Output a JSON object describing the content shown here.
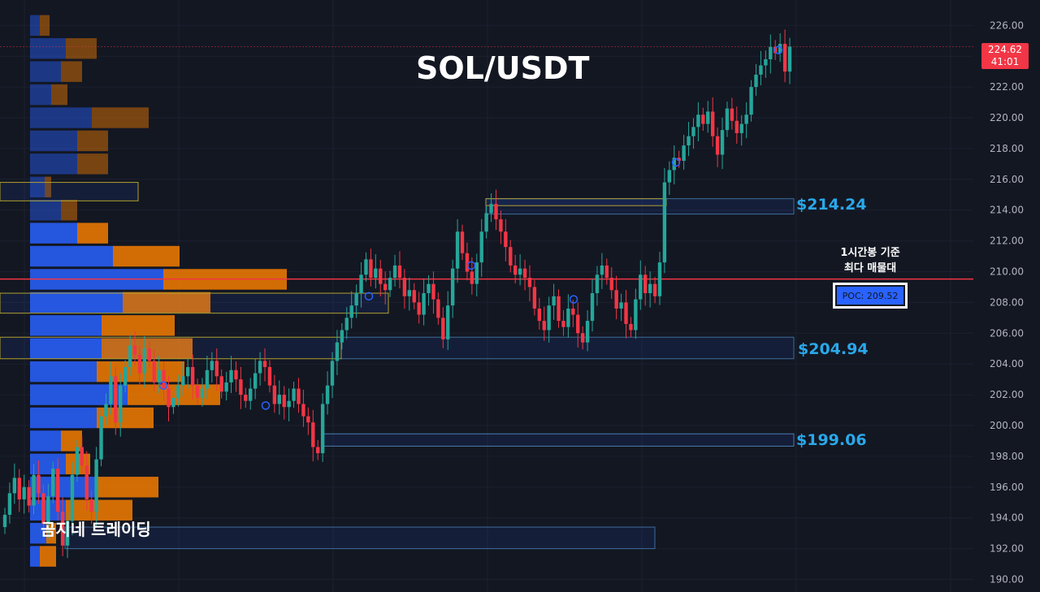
{
  "title": "SOL/USDT",
  "watermark": "곰지네 트레이딩",
  "annotation": {
    "line1": "1시간봉 기준",
    "line2": "최다 매물대"
  },
  "poc_label": "POC: 209.52",
  "last_price": {
    "price": "224.62",
    "countdown": "41:01"
  },
  "levels": [
    {
      "label": "$214.24",
      "value": 214.24
    },
    {
      "label": "$204.94",
      "value": 204.94
    },
    {
      "label": "$199.06",
      "value": 199.06
    }
  ],
  "colors": {
    "background": "#131722",
    "up": "#26a69a",
    "down": "#f23645",
    "poc_line": "#f23645",
    "vp_up": "#2962ff",
    "vp_down": "#f57c00",
    "accent": "#29a8ea"
  },
  "chart_data": {
    "type": "candlestick",
    "timeframe": "1h",
    "ylim": [
      189.5,
      227
    ],
    "y_ticks": [
      "190.00",
      "192.00",
      "194.00",
      "196.00",
      "198.00",
      "200.00",
      "202.00",
      "204.00",
      "206.00",
      "208.00",
      "210.00",
      "212.00",
      "214.00",
      "216.00",
      "218.00",
      "220.00",
      "222.00",
      "224.00",
      "226.00"
    ],
    "poc": 209.52,
    "last_price": 224.62,
    "support_resistance": [
      214.24,
      204.94,
      199.06
    ],
    "closes": [
      194.2,
      195.6,
      196.6,
      195.2,
      196.0,
      194.8,
      196.8,
      195.6,
      193.6,
      195.4,
      197.2,
      194.4,
      192.2,
      193.8,
      196.8,
      198.6,
      197.4,
      195.2,
      194.4,
      197.8,
      200.6,
      201.4,
      203.2,
      200.2,
      202.6,
      203.8,
      205.2,
      204.6,
      203.4,
      205.0,
      204.2,
      202.8,
      203.6,
      202.4,
      201.2,
      201.8,
      202.6,
      203.2,
      203.8,
      202.6,
      201.8,
      202.4,
      203.6,
      204.2,
      203.2,
      202.2,
      202.8,
      203.6,
      203.0,
      202.0,
      201.6,
      202.4,
      203.4,
      204.2,
      203.8,
      202.6,
      201.4,
      202.0,
      201.2,
      201.6,
      202.4,
      201.4,
      200.6,
      200.2,
      198.6,
      198.2,
      201.4,
      202.6,
      204.2,
      205.4,
      206.2,
      207.0,
      207.8,
      208.6,
      209.8,
      210.8,
      209.6,
      210.2,
      209.2,
      208.8,
      209.6,
      210.4,
      209.6,
      208.4,
      208.8,
      208.0,
      207.2,
      208.6,
      209.2,
      208.2,
      207.0,
      205.6,
      207.8,
      210.2,
      212.6,
      211.2,
      210.0,
      209.2,
      210.6,
      212.6,
      213.8,
      214.4,
      213.4,
      212.6,
      211.6,
      210.4,
      209.8,
      210.2,
      209.6,
      209.0,
      207.6,
      206.8,
      206.2,
      207.8,
      208.4,
      206.8,
      206.4,
      207.6,
      207.2,
      206.0,
      205.4,
      206.8,
      208.6,
      209.8,
      210.4,
      209.6,
      208.8,
      207.6,
      208.0,
      206.6,
      206.2,
      208.2,
      209.8,
      208.6,
      209.2,
      208.4,
      210.6,
      215.8,
      216.6,
      217.4,
      217.2,
      218.2,
      218.8,
      219.4,
      220.2,
      219.6,
      220.4,
      218.8,
      217.6,
      219.2,
      220.6,
      219.8,
      219.0,
      219.6,
      220.2,
      222.0,
      222.8,
      223.4,
      223.8,
      224.6,
      224.2,
      224.8,
      223.0,
      224.62
    ],
    "volume_profile": [
      {
        "price": 226.0,
        "buy": 12,
        "sell": 12
      },
      {
        "price": 224.5,
        "buy": 44,
        "sell": 38
      },
      {
        "price": 223.0,
        "buy": 38,
        "sell": 26
      },
      {
        "price": 221.5,
        "buy": 26,
        "sell": 20
      },
      {
        "price": 220.0,
        "buy": 76,
        "sell": 70
      },
      {
        "price": 218.5,
        "buy": 58,
        "sell": 38
      },
      {
        "price": 217.0,
        "buy": 58,
        "sell": 38
      },
      {
        "price": 215.5,
        "buy": 18,
        "sell": 8
      },
      {
        "price": 214.0,
        "buy": 38,
        "sell": 20
      },
      {
        "price": 212.5,
        "buy": 58,
        "sell": 38
      },
      {
        "price": 211.0,
        "buy": 102,
        "sell": 82
      },
      {
        "price": 209.5,
        "buy": 164,
        "sell": 152
      },
      {
        "price": 208.0,
        "buy": 114,
        "sell": 108
      },
      {
        "price": 206.5,
        "buy": 88,
        "sell": 90
      },
      {
        "price": 205.0,
        "buy": 88,
        "sell": 112
      },
      {
        "price": 203.5,
        "buy": 82,
        "sell": 108
      },
      {
        "price": 202.0,
        "buy": 120,
        "sell": 114
      },
      {
        "price": 200.5,
        "buy": 82,
        "sell": 70
      },
      {
        "price": 199.0,
        "buy": 38,
        "sell": 26
      },
      {
        "price": 197.5,
        "buy": 44,
        "sell": 30
      },
      {
        "price": 196.0,
        "buy": 82,
        "sell": 76
      },
      {
        "price": 194.5,
        "buy": 44,
        "sell": 82
      },
      {
        "price": 193.0,
        "buy": 20,
        "sell": 12
      },
      {
        "price": 191.5,
        "buy": 12,
        "sell": 20
      }
    ]
  }
}
